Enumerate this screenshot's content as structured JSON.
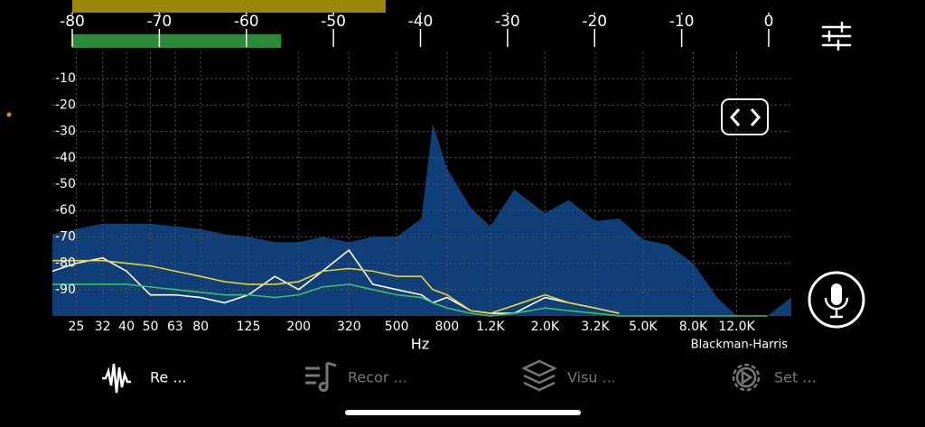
{
  "chart_data": [
    {
      "type": "meter",
      "xlim": [
        -80,
        0
      ],
      "xticks": [
        -80,
        -70,
        -60,
        -50,
        -40,
        -30,
        -20,
        -10,
        0
      ],
      "series": [
        {
          "color": "#9a870a",
          "values": [
            -44
          ]
        },
        {
          "color": "#2a8a3a",
          "values": [
            -56
          ]
        }
      ]
    },
    {
      "type": "area",
      "xscale": "log",
      "xlim": [
        20,
        20000
      ],
      "ylim": [
        -100,
        0
      ],
      "grid": true,
      "xlabel": "Hz",
      "window": "Blackman-Harris",
      "yticks": [
        -10,
        -20,
        -30,
        -40,
        -50,
        -60,
        -70,
        -80,
        -90
      ],
      "xticks": [
        25,
        32,
        40,
        50,
        63,
        80,
        125,
        200,
        320,
        500,
        800,
        {
          "value": 1200,
          "label": "1.2K"
        },
        {
          "value": 2000,
          "label": "2.0K"
        },
        {
          "value": 3200,
          "label": "3.2K"
        },
        {
          "value": 5000,
          "label": "5.0K"
        },
        {
          "value": 8000,
          "label": "8.0K"
        },
        {
          "value": 12000,
          "label": "12.0K"
        }
      ],
      "x": [
        20,
        25,
        32,
        40,
        50,
        63,
        80,
        100,
        125,
        160,
        200,
        250,
        320,
        400,
        500,
        630,
        700,
        800,
        1000,
        1200,
        1500,
        2000,
        2500,
        3200,
        4000,
        5000,
        6300,
        8000,
        10000,
        12000,
        16000,
        20000
      ],
      "series": [
        {
          "color": "#0f3e78",
          "values": [
            -69,
            -67,
            -65,
            -65,
            -65,
            -66,
            -67,
            -69,
            -70,
            -72,
            -72,
            -70,
            -72,
            -70,
            -70,
            -63,
            -27,
            -44,
            -59,
            -66,
            -52,
            -61,
            -56,
            -64,
            -63,
            -71,
            -73,
            -80,
            -93,
            -100,
            -100,
            -93
          ]
        },
        {
          "color": "#ffffff",
          "values": [
            -83,
            -80,
            -78,
            -83,
            -92,
            -92,
            -93,
            -95,
            -92,
            -85,
            -90,
            -83,
            -75,
            -88,
            -90,
            -92,
            -95,
            -93,
            -98,
            -99,
            -99,
            -93,
            -95,
            -97,
            -99,
            null,
            null,
            null,
            null,
            null,
            null,
            null
          ]
        },
        {
          "color": "#e8d23a",
          "values": [
            -79,
            -79,
            -79,
            -80,
            -81,
            -83,
            -85,
            -87,
            -88,
            -88,
            -87,
            -83,
            -82,
            -83,
            -85,
            -85,
            -90,
            -92,
            -98,
            -99,
            -96,
            -92,
            -95,
            -97,
            -99,
            null,
            null,
            null,
            null,
            null,
            null,
            null
          ]
        },
        {
          "color": "#3cc060",
          "values": [
            -88,
            -88,
            -88,
            -88,
            -89,
            -90,
            -91,
            -92,
            -92,
            -93,
            -92,
            -89,
            -88,
            -90,
            -92,
            -93,
            -95,
            -97,
            -99,
            -100,
            -99,
            -97,
            -98,
            -99,
            -100,
            -100,
            -100,
            -100,
            -100,
            -100,
            -100,
            null
          ]
        }
      ]
    }
  ],
  "tabs": [
    "Re ...",
    "Recor ...",
    "Visu ...",
    "Set ..."
  ]
}
